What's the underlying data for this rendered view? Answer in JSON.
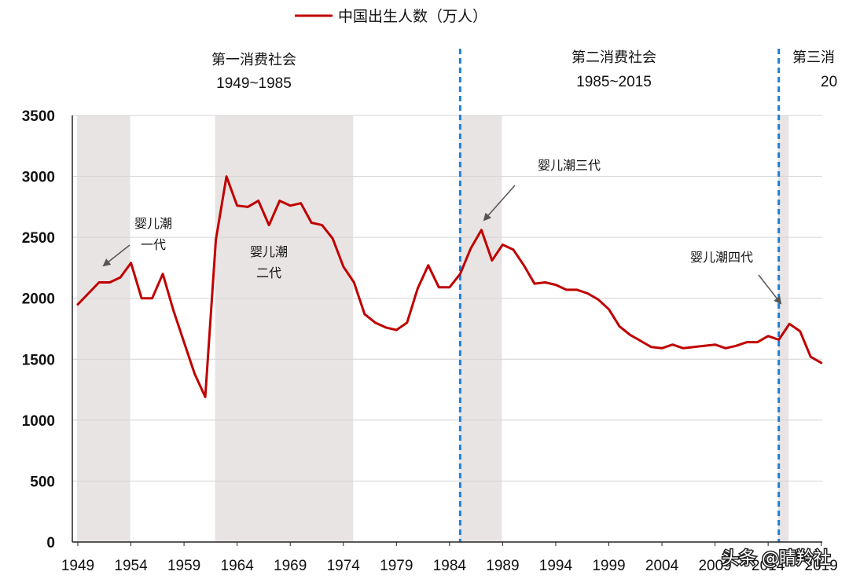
{
  "chart_data": {
    "type": "line",
    "legend": "中国出生人数（万人）",
    "ylim": [
      0,
      3500
    ],
    "yticks": [
      0,
      500,
      1000,
      1500,
      2000,
      2500,
      3000,
      3500
    ],
    "xlim": [
      1949,
      2020
    ],
    "xticks": [
      "1949",
      "1954",
      "1959",
      "1964",
      "1969",
      "1974",
      "1979",
      "1984",
      "1989",
      "1994",
      "1999",
      "2004",
      "2009",
      "2014",
      "2019"
    ],
    "series": [
      {
        "name": "中国出生人数（万人）",
        "color": "#c00000",
        "x": [
          1949,
          1950,
          1951,
          1952,
          1953,
          1954,
          1955,
          1956,
          1957,
          1958,
          1959,
          1960,
          1961,
          1962,
          1963,
          1964,
          1965,
          1966,
          1967,
          1968,
          1969,
          1970,
          1971,
          1972,
          1973,
          1974,
          1975,
          1976,
          1977,
          1978,
          1979,
          1980,
          1981,
          1982,
          1983,
          1984,
          1985,
          1986,
          1987,
          1988,
          1989,
          1990,
          1991,
          1992,
          1993,
          1994,
          1995,
          1996,
          1997,
          1998,
          1999,
          2000,
          2001,
          2002,
          2003,
          2004,
          2005,
          2006,
          2007,
          2008,
          2009,
          2010,
          2011,
          2012,
          2013,
          2014,
          2015,
          2016,
          2017,
          2018,
          2019
        ],
        "values": [
          1950,
          2040,
          2130,
          2130,
          2170,
          2290,
          2000,
          2000,
          2200,
          1900,
          1640,
          1380,
          1190,
          2480,
          3000,
          2760,
          2750,
          2800,
          2600,
          2800,
          2760,
          2780,
          2620,
          2600,
          2490,
          2260,
          2130,
          1870,
          1800,
          1760,
          1740,
          1800,
          2080,
          2270,
          2090,
          2090,
          2200,
          2410,
          2560,
          2310,
          2440,
          2400,
          2270,
          2120,
          2130,
          2110,
          2070,
          2070,
          2040,
          1990,
          1910,
          1770,
          1700,
          1650,
          1600,
          1590,
          1620,
          1590,
          1600,
          1610,
          1620,
          1590,
          1610,
          1640,
          1640,
          1690,
          1660,
          1790,
          1730,
          1520,
          1470
        ]
      }
    ],
    "shaded_periods": [
      [
        1949,
        1954
      ],
      [
        1962,
        1975
      ],
      [
        1985,
        1989
      ],
      [
        2015,
        2016
      ]
    ],
    "dividers": [
      1985,
      2015
    ],
    "eras": [
      {
        "name": "第一消费社会",
        "years": "1949~1985"
      },
      {
        "name": "第二消费社会",
        "years": "1985~2015"
      },
      {
        "name": "第三消",
        "years": "20"
      }
    ],
    "annotations": [
      {
        "lines": [
          "婴儿潮",
          "一代"
        ],
        "has_arrow": true
      },
      {
        "lines": [
          "婴儿潮",
          "二代"
        ],
        "has_arrow": false
      },
      {
        "lines": [
          "婴儿潮三代"
        ],
        "has_arrow": true
      },
      {
        "lines": [
          "婴儿潮四代"
        ],
        "has_arrow": true
      }
    ]
  },
  "watermark": "头条 @睛羚社",
  "colors": {
    "shade": "#e8e4e3",
    "divider": "#1f7fd8",
    "grid": "#d4d4d4",
    "axis": "#222222",
    "arrow": "#555555"
  }
}
